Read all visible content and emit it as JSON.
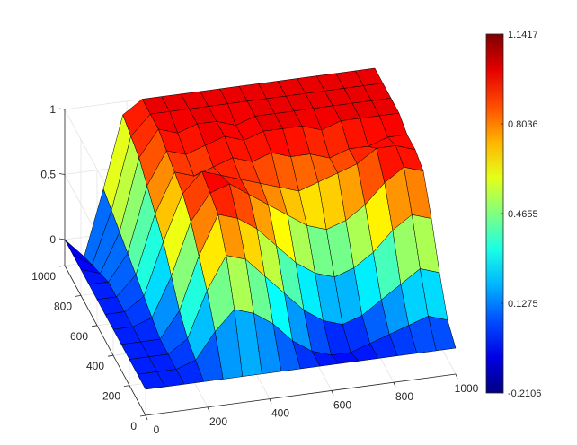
{
  "chart_data": {
    "type": "surface",
    "title": "",
    "xlabel": "",
    "ylabel": "",
    "zlabel": "",
    "grid": true,
    "colormap": "jet",
    "xlim": [
      0,
      1000
    ],
    "ylim": [
      0,
      1000
    ],
    "zlim": [
      -0.2106,
      1.1417
    ],
    "x_ticks": [
      "0",
      "200",
      "400",
      "600",
      "800",
      "1000"
    ],
    "y_ticks": [
      "0",
      "200",
      "400",
      "600",
      "800",
      "1000"
    ],
    "z_ticks": [
      "0",
      "0.5",
      "1"
    ],
    "colorbar": {
      "min": -0.2106,
      "max": 1.1417,
      "ticks": [
        "-0.2106",
        "0.1275",
        "0.4655",
        "0.8036",
        "1.1417"
      ]
    },
    "x_grid": [
      0,
      62.5,
      125,
      187.5,
      250,
      312.5,
      375,
      437.5,
      500,
      562.5,
      625,
      687.5,
      750,
      812.5,
      875,
      937.5,
      1000
    ],
    "y_grid": [
      0,
      100,
      200,
      300,
      400,
      500,
      600,
      700,
      800,
      900,
      1000
    ],
    "z_rows": [
      [
        0,
        -0.15,
        0.35,
        0.9,
        1.0,
        1.0,
        1.0,
        1.0,
        1.0,
        1.0,
        1.0,
        1.0,
        1.0,
        1.0,
        1.0,
        1.0,
        1.0
      ],
      [
        0,
        -0.1,
        0.3,
        0.85,
        1.0,
        1.0,
        1.0,
        1.0,
        1.0,
        1.0,
        1.0,
        1.0,
        1.0,
        1.0,
        1.0,
        1.0,
        1.0
      ],
      [
        0,
        -0.05,
        0.25,
        0.8,
        1.0,
        0.95,
        1.0,
        1.0,
        0.95,
        1.0,
        1.0,
        1.0,
        1.0,
        1.0,
        1.0,
        1.0,
        1.0
      ],
      [
        0,
        0,
        0.2,
        0.7,
        0.95,
        0.9,
        0.95,
        1.0,
        0.95,
        1.0,
        1.0,
        1.0,
        0.95,
        1.0,
        1.0,
        1.0,
        1.0
      ],
      [
        0,
        0,
        0.15,
        0.6,
        0.9,
        0.85,
        0.9,
        0.95,
        0.9,
        0.95,
        0.9,
        0.9,
        0.85,
        0.9,
        0.9,
        0.95,
        0.95
      ],
      [
        0,
        0,
        0.1,
        0.5,
        0.85,
        1.0,
        0.95,
        0.9,
        0.85,
        0.8,
        0.75,
        0.8,
        0.85,
        0.9,
        1.0,
        1.0,
        0.95
      ],
      [
        0,
        0,
        0.05,
        0.35,
        0.75,
        0.95,
        1.0,
        0.9,
        0.8,
        0.7,
        0.6,
        0.55,
        0.6,
        0.7,
        0.85,
        0.95,
        0.9
      ],
      [
        0,
        0,
        0,
        0.2,
        0.6,
        0.9,
        0.85,
        0.75,
        0.6,
        0.45,
        0.35,
        0.3,
        0.35,
        0.45,
        0.6,
        0.7,
        0.65
      ],
      [
        0,
        0,
        0,
        0.1,
        0.45,
        0.7,
        0.65,
        0.5,
        0.35,
        0.2,
        0.1,
        0.05,
        0.1,
        0.2,
        0.3,
        0.4,
        0.35
      ],
      [
        0,
        0,
        0,
        0.05,
        0.25,
        0.4,
        0.35,
        0.25,
        0.1,
        0,
        -0.05,
        -0.05,
        0,
        0.05,
        0.1,
        0.15,
        0.1
      ],
      [
        0,
        0,
        0,
        0,
        0,
        0,
        0,
        0,
        0,
        0,
        0,
        0,
        0,
        0,
        0,
        0,
        0
      ]
    ]
  }
}
